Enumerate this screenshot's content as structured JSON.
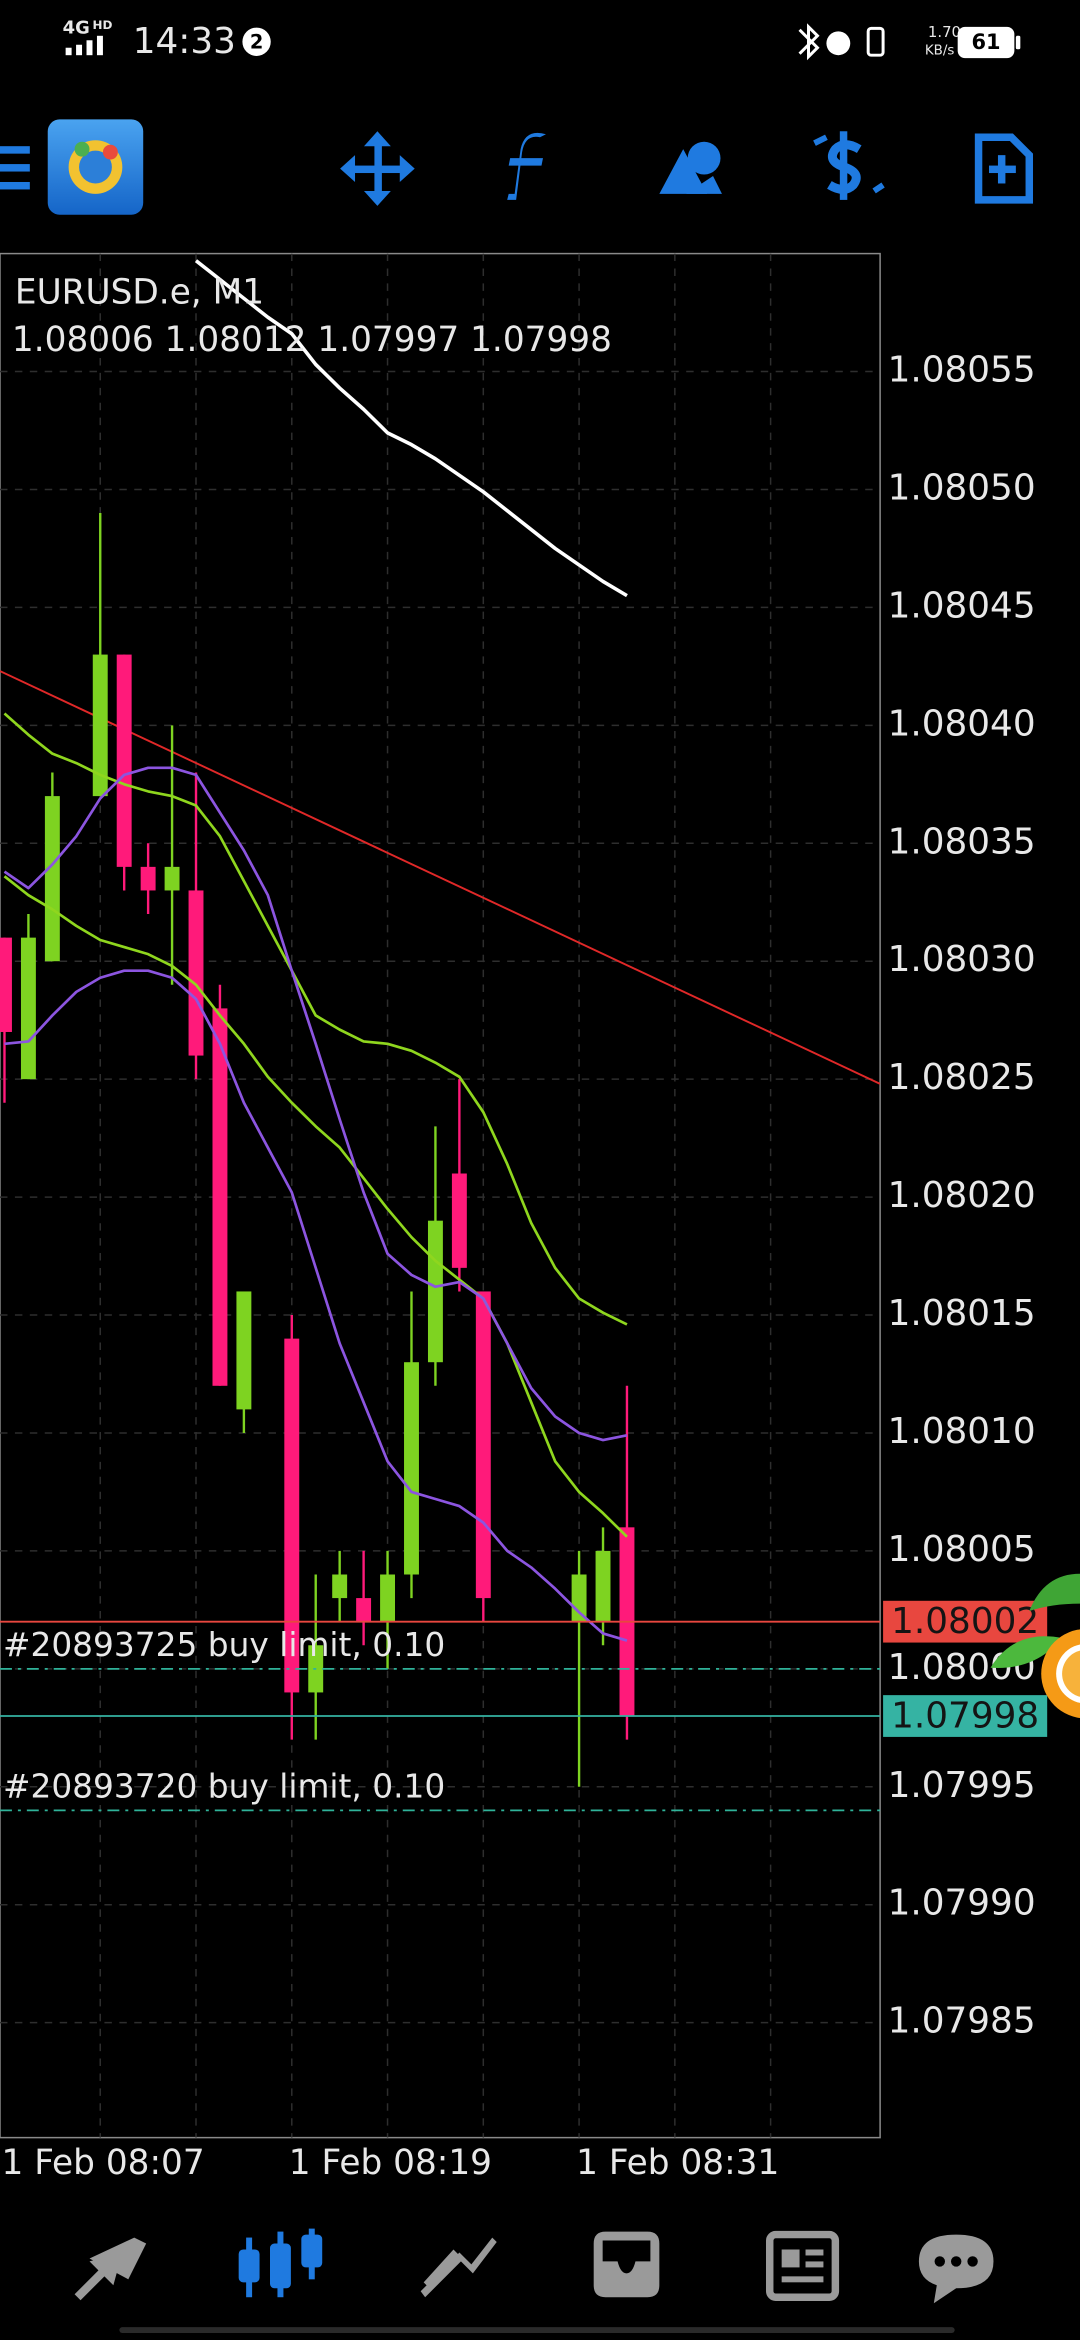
{
  "status_bar": {
    "network": "4G",
    "network_tag": "HD",
    "time": "14:33",
    "notification_count": "2",
    "speed": "1.70",
    "speed_unit": "KB/s",
    "battery": "61"
  },
  "chart_data": {
    "type": "candlestick",
    "title": "EURUSD.e, M1",
    "subtitle": "1.08006 1.08012 1.07997 1.07998",
    "categories": [
      "1 Feb 08:07",
      null,
      null,
      null,
      null,
      null,
      null,
      null,
      null,
      null,
      null,
      null,
      "1 Feb 08:19",
      null,
      null,
      null,
      null,
      null,
      null,
      null,
      null,
      null,
      null,
      null,
      "1 Feb 08:31",
      null,
      null
    ],
    "open": [
      1.08031,
      1.08025,
      1.0803,
      null,
      1.08037,
      1.08043,
      1.08034,
      1.08033,
      1.08033,
      1.08028,
      1.08011,
      null,
      1.08014,
      1.07999,
      1.08003,
      1.08003,
      1.08002,
      1.08004,
      1.08013,
      1.08021,
      1.08016,
      null,
      null,
      null,
      1.08002,
      1.08002,
      1.08006
    ],
    "high": [
      1.08031,
      1.08032,
      1.08038,
      null,
      1.08049,
      1.08043,
      1.08035,
      1.0804,
      1.08038,
      1.08029,
      1.08016,
      null,
      1.08015,
      1.08004,
      1.08005,
      1.08005,
      1.08005,
      1.08016,
      1.08023,
      1.08025,
      1.08016,
      null,
      null,
      null,
      1.08005,
      1.08006,
      1.08012
    ],
    "low": [
      1.08024,
      1.08025,
      1.0803,
      null,
      1.08037,
      1.08033,
      1.08032,
      1.08029,
      1.08025,
      1.08012,
      1.0801,
      null,
      1.07997,
      1.07997,
      1.08002,
      1.08001,
      1.08,
      1.08003,
      1.08012,
      1.08016,
      1.08002,
      null,
      null,
      null,
      1.07995,
      1.08001,
      1.07997
    ],
    "close": [
      1.08027,
      1.08031,
      1.08037,
      null,
      1.08043,
      1.08034,
      1.08033,
      1.08034,
      1.08026,
      1.08012,
      1.08016,
      null,
      1.07999,
      1.08001,
      1.08004,
      1.08002,
      1.08004,
      1.08013,
      1.08019,
      1.08017,
      1.08003,
      null,
      null,
      null,
      1.08004,
      1.08005,
      1.07998
    ],
    "up_color": "#7ed321",
    "down_color": "#ff1a7a",
    "lines": [
      {
        "color": "#8fd61e",
        "values": [
          1.080405,
          1.080396,
          1.080388,
          1.080384,
          1.080379,
          1.080375,
          1.080372,
          1.08037,
          1.080366,
          1.080353,
          1.080334,
          1.080315,
          1.080296,
          1.080277,
          1.080271,
          1.080266,
          1.080265,
          1.080262,
          1.080257,
          1.080251,
          1.080236,
          1.080214,
          1.080189,
          1.08017,
          1.080157,
          1.080151,
          1.080146
        ]
      },
      {
        "color": "#8fd61e",
        "values": [
          1.080336,
          1.080328,
          1.080322,
          1.080315,
          1.080309,
          1.080306,
          1.080303,
          1.080298,
          1.08029,
          1.080277,
          1.080265,
          1.080251,
          1.08024,
          1.08023,
          1.080221,
          1.080208,
          1.080195,
          1.080183,
          1.080173,
          1.080165,
          1.080157,
          1.080138,
          1.080113,
          1.080088,
          1.080075,
          1.080066,
          1.080056
        ]
      },
      {
        "color": "#8c55e0",
        "values": [
          1.080338,
          1.080331,
          1.080341,
          1.080353,
          1.080369,
          1.080379,
          1.080382,
          1.080382,
          1.080379,
          1.080363,
          1.080347,
          1.080328,
          1.080296,
          1.080265,
          1.080233,
          1.080202,
          1.080176,
          1.080167,
          1.080162,
          1.080164,
          1.080157,
          1.080138,
          1.080119,
          1.080107,
          1.0801,
          1.080097,
          1.080099
        ]
      },
      {
        "color": "#8c55e0",
        "values": [
          1.080265,
          1.080266,
          1.080277,
          1.080287,
          1.080293,
          1.080296,
          1.080296,
          1.080293,
          1.080284,
          1.080265,
          1.08024,
          1.080221,
          1.080202,
          1.08017,
          1.080138,
          1.080113,
          1.080088,
          1.080075,
          1.080072,
          1.080069,
          1.080062,
          1.08005,
          1.080043,
          1.080034,
          1.080024,
          1.080015,
          1.080012
        ]
      },
      {
        "color": "#ffffff",
        "values": [
          null,
          null,
          null,
          null,
          null,
          null,
          null,
          null,
          1.080597,
          1.080589,
          1.080581,
          1.080573,
          1.080566,
          1.080553,
          1.080543,
          1.080534,
          1.080524,
          1.080519,
          1.080513,
          1.080506,
          1.080499,
          1.080491,
          1.080483,
          1.080475,
          1.080468,
          1.080461,
          1.080455
        ]
      }
    ],
    "trendline": {
      "color": "#e02828",
      "start": 1.080423,
      "end": 1.080248
    },
    "bid": 1.08002,
    "bid_color": "#e8473f",
    "ask": 1.07998,
    "ask_color": "#35b3a3",
    "orders": [
      {
        "label": "#20893725 buy limit, 0.10",
        "price": 1.08,
        "color": "#2fb39a"
      },
      {
        "label": "#20893720 buy limit, 0.10",
        "price": 1.07994,
        "color": "#2fb39a"
      }
    ],
    "ylim": [
      1.0798,
      1.0806
    ],
    "yticks": [
      1.08055,
      {
        "value": 1.0805,
        "label": "1.08050"
      },
      1.08045,
      {
        "value": 1.0804,
        "label": "1.08040"
      },
      1.08035,
      {
        "value": 1.0803,
        "label": "1.08030"
      },
      1.08025,
      {
        "value": 1.0802,
        "label": "1.08020"
      },
      1.08015,
      {
        "value": 1.0801,
        "label": "1.08010"
      },
      1.08005,
      {
        "value": 1.08,
        "label": "1.08000"
      },
      1.07995,
      {
        "value": 1.0799,
        "label": "1.07990"
      },
      1.07985
    ],
    "grid": true
  }
}
